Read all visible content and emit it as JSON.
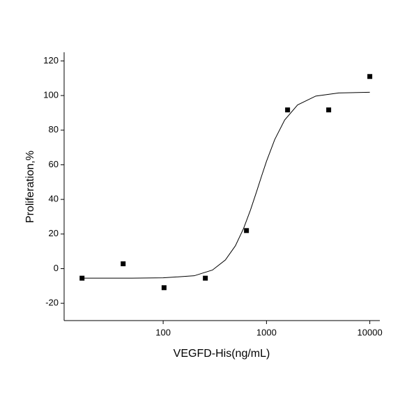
{
  "chart_data": {
    "type": "scatter",
    "x_label": "VEGFD-His(ng/mL)",
    "y_label": "Proliferation,%",
    "x_log": true,
    "xlim": [
      11,
      12500
    ],
    "xticks": [
      100,
      1000,
      10000
    ],
    "ylim": [
      -30,
      125
    ],
    "yticks": [
      -20,
      0,
      20,
      40,
      60,
      80,
      100,
      120
    ],
    "color": "#000000",
    "points": {
      "x": [
        16.4,
        41,
        102,
        256,
        640,
        1600,
        4000,
        10000
      ],
      "values": [
        -5.5,
        2.8,
        -11,
        -5.5,
        22,
        91.7,
        91.7,
        111
      ]
    },
    "fit": {
      "x": [
        16,
        50,
        100,
        200,
        300,
        400,
        500,
        600,
        700,
        800,
        900,
        1000,
        1200,
        1500,
        2000,
        3000,
        5000,
        10000
      ],
      "values": [
        -5.5,
        -5.5,
        -5.3,
        -4.1,
        -0.8,
        5.0,
        13.2,
        23.2,
        33.9,
        44.3,
        53.8,
        62.0,
        74.5,
        85.9,
        94.6,
        99.7,
        101.5,
        101.9
      ]
    }
  }
}
